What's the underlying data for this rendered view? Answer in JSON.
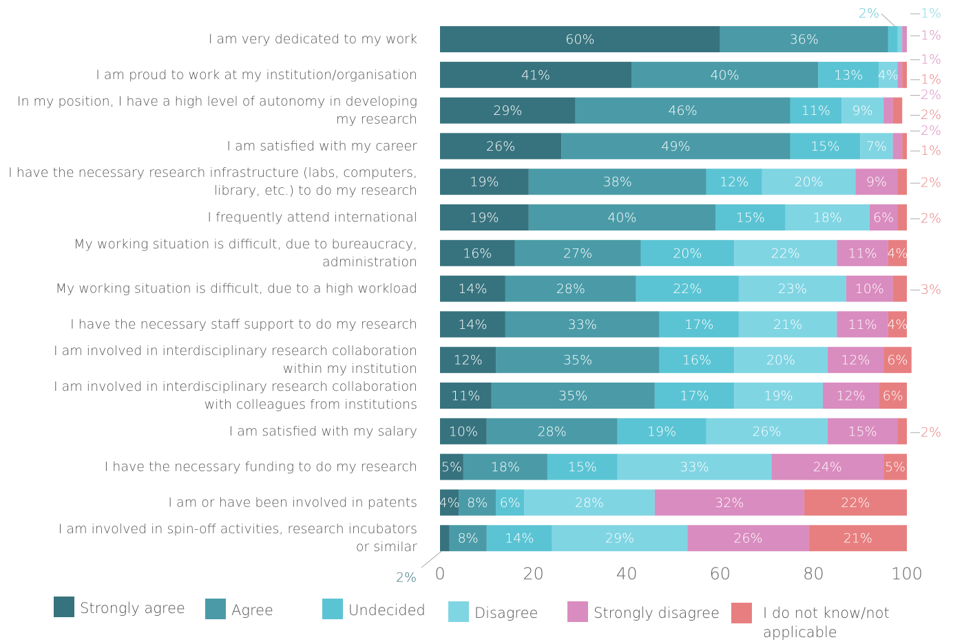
{
  "chart_data": {
    "type": "stacked-barh",
    "categories": [
      "I am very dedicated to my work",
      "I am proud to work at my institution/organisation",
      "In my position, I have a high level of autonomy in developing\nmy research",
      "I am satisfied with my career",
      "I have the necessary research infrastructure (labs, computers,\nlibrary, etc.) to do my research",
      "I frequently attend international",
      "My working situation is difficult, due to bureaucracy,\nadministration",
      "My working situation is difficult, due to a high workload",
      "I have the necessary staff support to do my research",
      "I am involved in interdisciplinary research collaboration\nwithin my institution",
      "I am involved in interdisciplinary research collaboration\nwith colleagues from institutions",
      "I am satisfied with my salary",
      "I have the necessary funding to do my research",
      "I am or have been involved in patents",
      "I am involved in spin-off activities, research incubators\nor similar"
    ],
    "series": [
      {
        "name": "Strongly agree",
        "color": "#37737e",
        "values": [
          60,
          41,
          29,
          26,
          19,
          19,
          16,
          14,
          14,
          12,
          11,
          10,
          5,
          4,
          2
        ],
        "value_labels": [
          "60%",
          "41%",
          "29%",
          "26%",
          "19%",
          "19%",
          "16%",
          "14%",
          "14%",
          "12%",
          "11%",
          "10%",
          "5%",
          "4%",
          "2%"
        ]
      },
      {
        "name": "Agree",
        "color": "#4a9ba7",
        "values": [
          36,
          40,
          46,
          49,
          38,
          40,
          27,
          28,
          33,
          35,
          35,
          28,
          18,
          8,
          8
        ],
        "value_labels": [
          "36%",
          "40%",
          "46%",
          "49%",
          "38%",
          "40%",
          "27%",
          "28%",
          "33%",
          "35%",
          "35%",
          "28%",
          "18%",
          "8%",
          "8%"
        ]
      },
      {
        "name": "Undecided",
        "color": "#5bc4d4",
        "values": [
          2,
          13,
          11,
          15,
          12,
          15,
          20,
          22,
          17,
          16,
          17,
          19,
          15,
          6,
          14
        ],
        "value_labels": [
          "2%",
          "13%",
          "11%",
          "15%",
          "12%",
          "15%",
          "20%",
          "22%",
          "17%",
          "16%",
          "17%",
          "19%",
          "15%",
          "6%",
          "14%"
        ]
      },
      {
        "name": "Disagree",
        "color": "#80d5e3",
        "values": [
          1,
          4,
          9,
          7,
          20,
          18,
          22,
          23,
          21,
          20,
          19,
          26,
          33,
          28,
          29
        ],
        "value_labels": [
          "1%",
          "4%",
          "9%",
          "7%",
          "20%",
          "18%",
          "22%",
          "23%",
          "21%",
          "20%",
          "19%",
          "26%",
          "33%",
          "28%",
          "29%"
        ]
      },
      {
        "name": "Strongly disagree",
        "color": "#d98cbf",
        "values": [
          1,
          1,
          2,
          2,
          9,
          6,
          11,
          10,
          11,
          12,
          12,
          15,
          24,
          32,
          26
        ],
        "value_labels": [
          "1%",
          "1%",
          "2%",
          "2%",
          "9%",
          "6%",
          "11%",
          "10%",
          "11%",
          "12%",
          "12%",
          "15%",
          "24%",
          "32%",
          "26%"
        ]
      },
      {
        "name": "I do not know/not\napplicable",
        "color": "#e77f80",
        "values": [
          null,
          1,
          2,
          1,
          2,
          2,
          4,
          3,
          4,
          6,
          6,
          2,
          5,
          22,
          21
        ],
        "value_labels": [
          null,
          "1%",
          "2%",
          "1%",
          "2%",
          "2%",
          "4%",
          "3%",
          "4%",
          "6%",
          "6%",
          "2%",
          "5%",
          "22%",
          "21%"
        ]
      }
    ],
    "xlim": [
      0,
      100
    ],
    "xticks": [
      0,
      20,
      40,
      60,
      80,
      100
    ],
    "grid": false,
    "legend": "bottom"
  }
}
